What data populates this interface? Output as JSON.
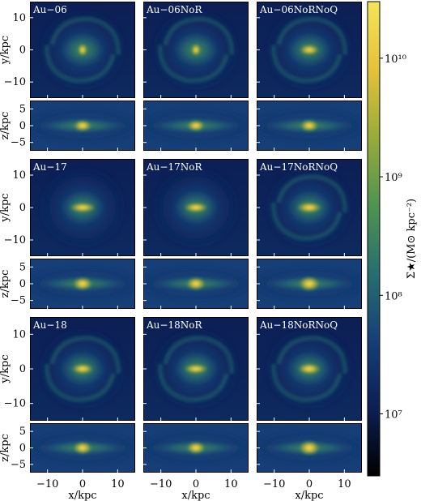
{
  "chart_data": {
    "type": "heatmap",
    "quantity": "stellar surface density",
    "colorbar": {
      "label": "Σ★/(M⊙ kpc⁻²)",
      "scale": "log",
      "range": [
        3000000,
        30000000000
      ],
      "ticks": [
        {
          "value": 10000000,
          "label": "10⁷"
        },
        {
          "value": 100000000,
          "label": "10⁸"
        },
        {
          "value": 1000000000,
          "label": "10⁹"
        },
        {
          "value": 10000000000,
          "label": "10¹⁰"
        }
      ],
      "colormap": [
        "#000000",
        "#0c1f55",
        "#163f77",
        "#276f6f",
        "#4f9450",
        "#99ab3a",
        "#e5c23a",
        "#f2e55a"
      ]
    },
    "x_axis": {
      "label": "x/kpc",
      "range": [
        -15,
        15
      ],
      "ticks": [
        -10,
        0,
        10
      ]
    },
    "y_axis_faceon": {
      "label": "y/kpc",
      "range": [
        -15,
        15
      ],
      "ticks": [
        -10,
        0,
        10
      ]
    },
    "z_axis_edgeon": {
      "label": "z/kpc",
      "range": [
        -7.5,
        7.5
      ],
      "ticks": [
        -5,
        0,
        5
      ]
    },
    "groups": [
      {
        "panels": [
          {
            "name": "Au−06",
            "bar": 0,
            "compact": 0.3,
            "spiral": 1
          },
          {
            "name": "Au−06NoR",
            "bar": 0,
            "compact": 0.25,
            "spiral": 1
          },
          {
            "name": "Au−06NoRNoQ",
            "bar": 0.45,
            "compact": 0.35,
            "spiral": 1
          }
        ]
      },
      {
        "panels": [
          {
            "name": "Au−17",
            "bar": 0.75,
            "compact": 0.55,
            "spiral": 0
          },
          {
            "name": "Au−17NoR",
            "bar": 0.65,
            "compact": 0.5,
            "spiral": 0
          },
          {
            "name": "Au−17NoRNoQ",
            "bar": 0.7,
            "compact": 0.8,
            "spiral": 1
          }
        ]
      },
      {
        "panels": [
          {
            "name": "Au−18",
            "bar": 0.55,
            "compact": 0.45,
            "spiral": 1
          },
          {
            "name": "Au−18NoR",
            "bar": 0.65,
            "compact": 0.4,
            "spiral": 1
          },
          {
            "name": "Au−18NoRNoQ",
            "bar": 0.6,
            "compact": 0.8,
            "spiral": 1
          }
        ]
      }
    ]
  }
}
